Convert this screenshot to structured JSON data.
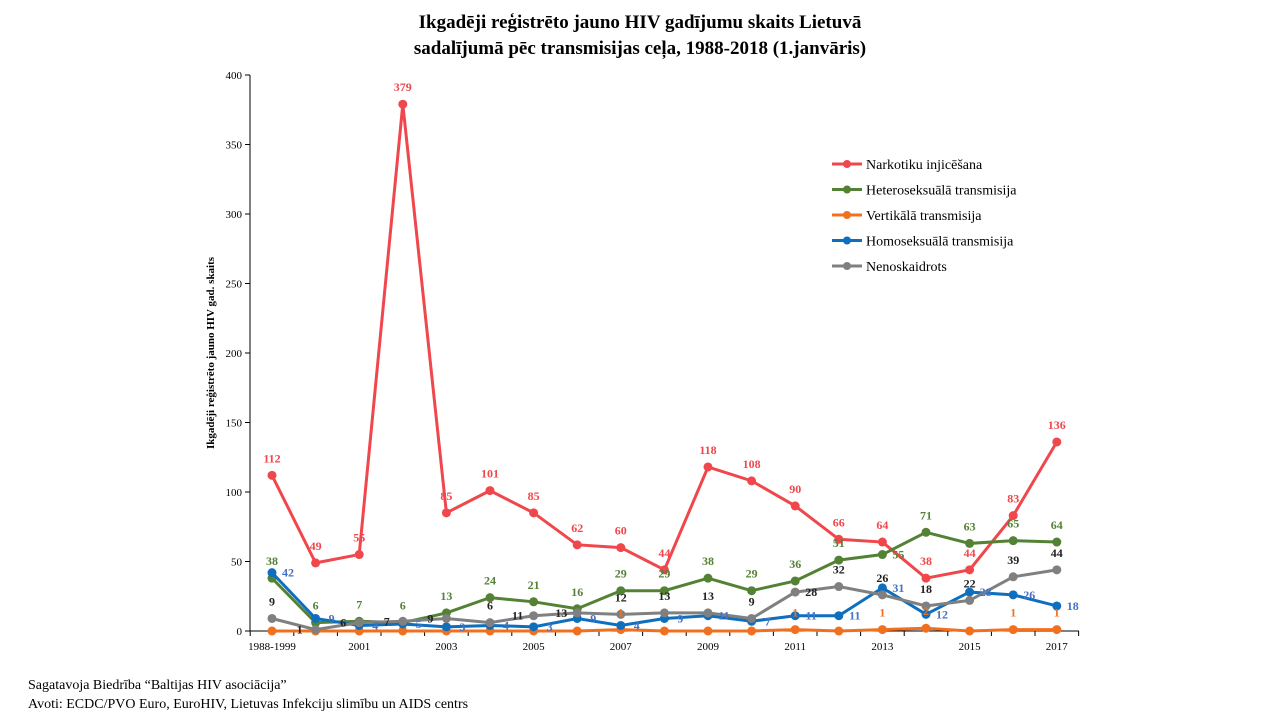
{
  "chart_data": {
    "type": "line",
    "title": [
      "Ikgadēji reģistrēto jauno HIV gadījumu skaits Lietuvā",
      "sadalījumā  pēc transmisijas  ceļa, 1988-2018 (1.janvāris)"
    ],
    "xlabel": "",
    "ylabel": "Ikgadēji  reģistrēto jauno HIV gad.  skaits",
    "ylim": [
      0,
      400
    ],
    "yticks": [
      0,
      50,
      100,
      150,
      200,
      250,
      300,
      350,
      400
    ],
    "x": [
      "1988-1999",
      "2000",
      "2001",
      "2002",
      "2003",
      "2004",
      "2005",
      "2006",
      "2007",
      "2008",
      "2009",
      "2010",
      "2011",
      "2012",
      "2013",
      "2014",
      "2015",
      "2016",
      "2017"
    ],
    "xtick_labels": {
      "0": "1988-1999",
      "2": "2001",
      "4": "2003",
      "6": "2005",
      "8": "2007",
      "10": "2009",
      "12": "2011",
      "14": "2013",
      "16": "2015",
      "18": "2017"
    },
    "legend_position": "top-right",
    "grid": false,
    "series": [
      {
        "name": "Narkotiku injicēšana",
        "color": "#f0474c",
        "label_color": "#f0474c",
        "values": [
          112,
          49,
          55,
          379,
          85,
          101,
          85,
          62,
          60,
          44,
          118,
          108,
          90,
          66,
          64,
          38,
          44,
          83,
          136
        ]
      },
      {
        "name": "Heteroseksuālā transmisija",
        "color": "#548235",
        "label_color": "#548235",
        "values": [
          38,
          6,
          7,
          6,
          13,
          24,
          21,
          16,
          29,
          29,
          38,
          29,
          36,
          51,
          55,
          71,
          63,
          65,
          64
        ]
      },
      {
        "name": "Vertikālā transmisija",
        "color": "#f07020",
        "label_color": "#f07020",
        "values": [
          0,
          0,
          0,
          0,
          0,
          0,
          0,
          0,
          1,
          0,
          0,
          0,
          1,
          0,
          1,
          2,
          0,
          1,
          1
        ]
      },
      {
        "name": "Homoseksuālā transmisija",
        "color": "#0f6fbf",
        "label_color": "#4472c4",
        "values": [
          42,
          9,
          4,
          5,
          3,
          4,
          3,
          9,
          4,
          9,
          11,
          7,
          11,
          11,
          31,
          12,
          28,
          26,
          18
        ]
      },
      {
        "name": "Nenoskaidrots",
        "color": "#808080",
        "label_color": "#222222",
        "values": [
          9,
          1,
          6,
          7,
          9,
          6,
          11,
          13,
          12,
          13,
          13,
          9,
          28,
          32,
          26,
          18,
          22,
          39,
          44
        ]
      }
    ]
  },
  "footer": {
    "line1": "Sagatavoja Biedrība  “Baltijas  HIV asociācija”",
    "line2": "Avoti:  ECDC/PVO Euro, EuroHIV,  Lietuvas  Infekciju  slimību  un AIDS centrs"
  }
}
